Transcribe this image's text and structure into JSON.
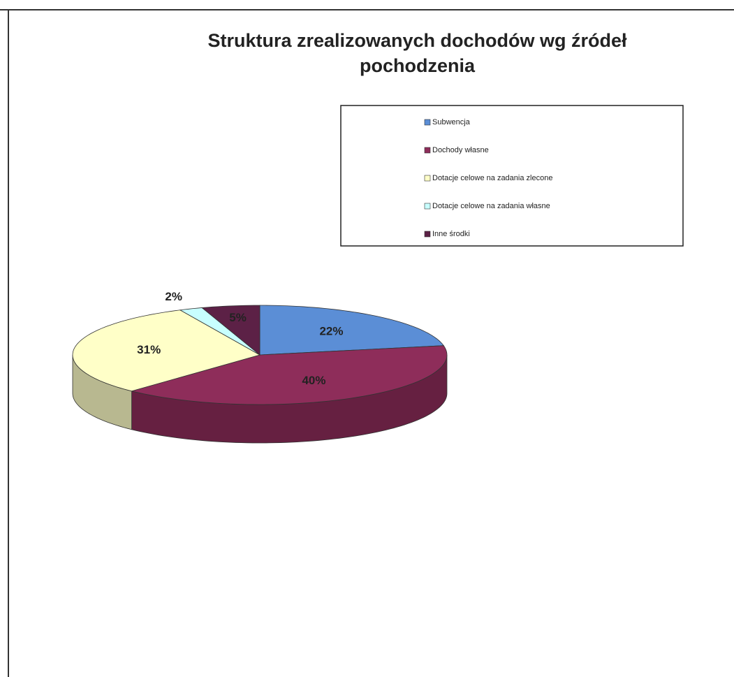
{
  "chart_data": {
    "type": "pie",
    "title": "Struktura zrealizowanych dochodów wg źródeł pochodzenia",
    "categories": [
      "Subwencja",
      "Dochody własne",
      "Dotacje celowe na zadania zlecone",
      "Dotacje celowe na zadania własne",
      "Inne środki"
    ],
    "values": [
      22,
      40,
      31,
      2,
      5
    ],
    "value_labels": [
      "22%",
      "40%",
      "31%",
      "2%",
      "5%"
    ],
    "colors": [
      "#5b8ed6",
      "#8e2d5a",
      "#ffffc8",
      "#c8ffff",
      "#5c2146"
    ],
    "legend": "upper right"
  }
}
